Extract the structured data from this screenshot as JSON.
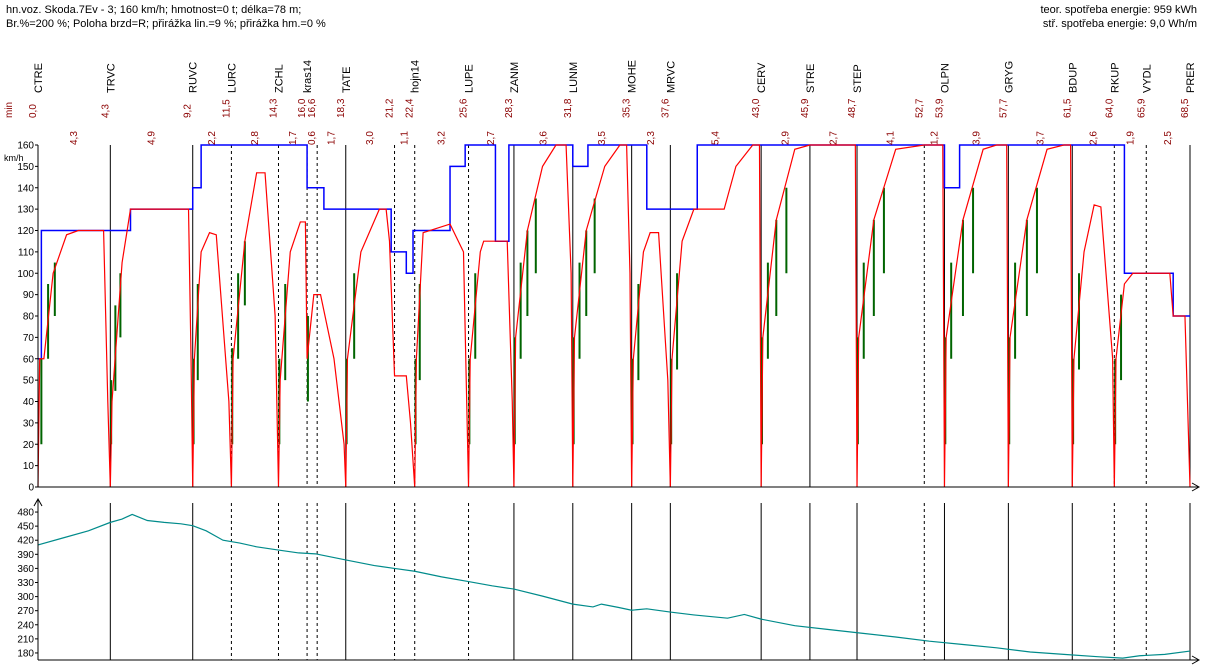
{
  "header": {
    "line1": "hn.voz. Skoda.7Ev - 3; 160 km/h; hmotnost=0 t; délka=78 m;",
    "line2": "Br.%=200 %; Poloha brzd=R; přirážka lin.=9 %; přirážka hm.=0 %",
    "energy_theor": "teor. spotřeba energie: 959 kWh",
    "energy_spec": "stř. spotřeba energie: 9,0 Wh/m"
  },
  "colors": {
    "speed_limit": "#0000ff",
    "speed_profile": "#ff0000",
    "acceleration": "#006400",
    "elevation": "#008b8b",
    "time_labels": "#8b0000",
    "axis": "#000000"
  },
  "chart_data": [
    {
      "type": "line",
      "title": "",
      "ylabel": "km/h",
      "time_unit_label": "min",
      "ylim": [
        0,
        160
      ],
      "yticks": [
        0,
        10,
        20,
        30,
        40,
        50,
        60,
        70,
        80,
        90,
        100,
        110,
        120,
        130,
        140,
        150,
        160
      ],
      "stations": [
        {
          "name": "CTRE",
          "time": "0,0",
          "style": "solid"
        },
        {
          "name": "TRVC",
          "time": "4,3",
          "style": "solid"
        },
        {
          "name": "RUVC",
          "time": "9,2",
          "style": "solid"
        },
        {
          "name": "LURC",
          "time": "11,5",
          "style": "dashed"
        },
        {
          "name": "ZCHL",
          "time": "14,3",
          "style": "dashed"
        },
        {
          "name": "kras14",
          "time": "16,0",
          "style": "dashed"
        },
        {
          "name": "",
          "time": "16,6",
          "style": "dashed"
        },
        {
          "name": "TATE",
          "time": "18,3",
          "style": "solid"
        },
        {
          "name": "",
          "time": "21,2",
          "style": "dashed"
        },
        {
          "name": "hojn14",
          "time": "22,4",
          "style": "dashed"
        },
        {
          "name": "LUPE",
          "time": "25,6",
          "style": "dashed"
        },
        {
          "name": "ZANM",
          "time": "28,3",
          "style": "solid"
        },
        {
          "name": "LUNM",
          "time": "31,8",
          "style": "solid"
        },
        {
          "name": "MOHE",
          "time": "35,3",
          "style": "solid"
        },
        {
          "name": "MRVC",
          "time": "37,6",
          "style": "solid"
        },
        {
          "name": "CERV",
          "time": "43,0",
          "style": "solid"
        },
        {
          "name": "STRE",
          "time": "45,9",
          "style": "solid"
        },
        {
          "name": "STEP",
          "time": "48,7",
          "style": "solid"
        },
        {
          "name": "",
          "time": "52,7",
          "style": "dashed"
        },
        {
          "name": "OLPN",
          "time": "53,9",
          "style": "solid"
        },
        {
          "name": "GRYG",
          "time": "57,7",
          "style": "solid"
        },
        {
          "name": "BDUP",
          "time": "61,5",
          "style": "solid"
        },
        {
          "name": "RKUP",
          "time": "64,0",
          "style": "dashed"
        },
        {
          "name": "VYDL",
          "time": "65,9",
          "style": "dashed"
        },
        {
          "name": "PRER",
          "time": "68,5",
          "style": "solid"
        }
      ],
      "segment_times": [
        "4,3",
        "4,9",
        "2,2",
        "2,8",
        "1,7",
        "0,6",
        "1,7",
        "3,0",
        "1,1",
        "3,2",
        "2,7",
        "3,6",
        "3,5",
        "2,3",
        "5,4",
        "2,9",
        "2,7",
        "4,1",
        "1,2",
        "3,9",
        "3,7",
        "2,6",
        "1,9",
        "2,5"
      ],
      "speed_limit": [
        [
          0,
          60
        ],
        [
          0.2,
          60
        ],
        [
          0.2,
          120
        ],
        [
          4.3,
          120
        ],
        [
          4.3,
          120
        ],
        [
          5.5,
          120
        ],
        [
          5.5,
          130
        ],
        [
          9.2,
          130
        ],
        [
          9.2,
          140
        ],
        [
          9.7,
          140
        ],
        [
          9.7,
          160
        ],
        [
          16.0,
          160
        ],
        [
          16.0,
          140
        ],
        [
          17.0,
          140
        ],
        [
          17.0,
          130
        ],
        [
          21.0,
          130
        ],
        [
          21.0,
          110
        ],
        [
          21.9,
          110
        ],
        [
          21.9,
          100
        ],
        [
          22.3,
          100
        ],
        [
          22.3,
          120
        ],
        [
          24.5,
          120
        ],
        [
          24.5,
          150
        ],
        [
          25.4,
          150
        ],
        [
          25.4,
          160
        ],
        [
          27.2,
          160
        ],
        [
          27.2,
          115
        ],
        [
          28.0,
          115
        ],
        [
          28.0,
          160
        ],
        [
          31.8,
          160
        ],
        [
          31.8,
          150
        ],
        [
          32.7,
          150
        ],
        [
          32.7,
          160
        ],
        [
          36.2,
          160
        ],
        [
          36.2,
          130
        ],
        [
          39.2,
          130
        ],
        [
          39.2,
          160
        ],
        [
          53.9,
          160
        ],
        [
          53.9,
          140
        ],
        [
          54.8,
          140
        ],
        [
          54.8,
          160
        ],
        [
          64.6,
          160
        ],
        [
          64.6,
          100
        ],
        [
          67.5,
          100
        ],
        [
          67.5,
          80
        ],
        [
          68.5,
          80
        ]
      ],
      "speed_profile": [
        [
          0,
          0
        ],
        [
          0.1,
          60
        ],
        [
          0.35,
          60
        ],
        [
          0.9,
          100
        ],
        [
          1.7,
          118
        ],
        [
          2.4,
          120
        ],
        [
          3.9,
          120
        ],
        [
          4.15,
          40
        ],
        [
          4.3,
          0
        ],
        [
          4.4,
          40
        ],
        [
          5.0,
          105
        ],
        [
          5.5,
          130
        ],
        [
          8.95,
          130
        ],
        [
          9.1,
          60
        ],
        [
          9.2,
          0
        ],
        [
          9.3,
          60
        ],
        [
          9.7,
          110
        ],
        [
          10.2,
          119
        ],
        [
          10.6,
          118
        ],
        [
          11.35,
          40
        ],
        [
          11.5,
          0
        ],
        [
          11.6,
          60
        ],
        [
          12.3,
          115
        ],
        [
          13.0,
          147
        ],
        [
          13.5,
          147
        ],
        [
          14.1,
          80
        ],
        [
          14.3,
          0
        ],
        [
          14.4,
          50
        ],
        [
          15.0,
          110
        ],
        [
          15.6,
          124
        ],
        [
          15.9,
          124
        ],
        [
          16.0,
          60
        ],
        [
          16.4,
          90
        ],
        [
          16.8,
          90
        ],
        [
          17.6,
          60
        ],
        [
          18.2,
          20
        ],
        [
          18.3,
          0
        ],
        [
          18.4,
          60
        ],
        [
          19.2,
          110
        ],
        [
          20.3,
          130
        ],
        [
          20.7,
          130
        ],
        [
          20.9,
          115
        ],
        [
          21.2,
          52
        ],
        [
          21.9,
          52
        ],
        [
          22.15,
          30
        ],
        [
          22.4,
          0
        ],
        [
          22.5,
          60
        ],
        [
          22.9,
          119
        ],
        [
          24.5,
          123
        ],
        [
          25.3,
          110
        ],
        [
          25.6,
          0
        ],
        [
          25.7,
          60
        ],
        [
          26.3,
          110
        ],
        [
          26.5,
          115
        ],
        [
          27.9,
          115
        ],
        [
          28.2,
          40
        ],
        [
          28.3,
          0
        ],
        [
          28.4,
          70
        ],
        [
          29.1,
          120
        ],
        [
          30.0,
          150
        ],
        [
          30.8,
          160
        ],
        [
          31.4,
          160
        ],
        [
          31.7,
          100
        ],
        [
          31.8,
          0
        ],
        [
          31.9,
          70
        ],
        [
          32.6,
          120
        ],
        [
          33.7,
          150
        ],
        [
          34.6,
          160
        ],
        [
          35.0,
          160
        ],
        [
          35.2,
          100
        ],
        [
          35.3,
          0
        ],
        [
          35.4,
          60
        ],
        [
          36.0,
          110
        ],
        [
          36.4,
          119
        ],
        [
          36.9,
          119
        ],
        [
          37.45,
          50
        ],
        [
          37.6,
          0
        ],
        [
          37.7,
          60
        ],
        [
          38.3,
          115
        ],
        [
          39.0,
          130
        ],
        [
          40.8,
          130
        ],
        [
          41.5,
          150
        ],
        [
          42.5,
          160
        ],
        [
          42.9,
          160
        ],
        [
          43.0,
          0
        ],
        [
          43.1,
          70
        ],
        [
          43.9,
          125
        ],
        [
          45.0,
          158
        ],
        [
          45.9,
          160
        ],
        [
          48.6,
          160
        ],
        [
          48.7,
          0
        ],
        [
          48.8,
          70
        ],
        [
          49.7,
          125
        ],
        [
          51.0,
          158
        ],
        [
          52.7,
          160
        ],
        [
          53.8,
          160
        ],
        [
          53.9,
          0
        ],
        [
          54.0,
          70
        ],
        [
          55.0,
          125
        ],
        [
          56.2,
          158
        ],
        [
          57.0,
          160
        ],
        [
          57.6,
          160
        ],
        [
          57.7,
          0
        ],
        [
          57.8,
          70
        ],
        [
          58.8,
          125
        ],
        [
          60.0,
          158
        ],
        [
          61.0,
          160
        ],
        [
          61.4,
          160
        ],
        [
          61.5,
          0
        ],
        [
          61.6,
          60
        ],
        [
          62.2,
          110
        ],
        [
          62.8,
          132
        ],
        [
          63.2,
          131
        ],
        [
          63.9,
          60
        ],
        [
          64.0,
          0
        ],
        [
          64.1,
          60
        ],
        [
          64.6,
          95
        ],
        [
          65.1,
          100
        ],
        [
          67.3,
          100
        ],
        [
          67.5,
          80
        ],
        [
          68.2,
          80
        ],
        [
          68.5,
          0
        ]
      ],
      "acceleration_markers": [
        [
          0.2,
          20,
          60
        ],
        [
          0.6,
          60,
          95
        ],
        [
          1.0,
          80,
          105
        ],
        [
          4.35,
          20,
          50
        ],
        [
          4.6,
          45,
          85
        ],
        [
          4.9,
          70,
          100
        ],
        [
          9.25,
          20,
          60
        ],
        [
          9.5,
          50,
          95
        ],
        [
          11.55,
          20,
          65
        ],
        [
          11.9,
          60,
          100
        ],
        [
          12.3,
          85,
          115
        ],
        [
          14.35,
          20,
          60
        ],
        [
          14.7,
          50,
          95
        ],
        [
          16.05,
          40,
          80
        ],
        [
          18.35,
          20,
          60
        ],
        [
          18.8,
          60,
          100
        ],
        [
          22.45,
          20,
          60
        ],
        [
          22.7,
          50,
          95
        ],
        [
          25.65,
          20,
          60
        ],
        [
          26.0,
          60,
          100
        ],
        [
          28.35,
          20,
          70
        ],
        [
          28.7,
          60,
          105
        ],
        [
          29.1,
          80,
          120
        ],
        [
          29.6,
          100,
          135
        ],
        [
          31.85,
          20,
          70
        ],
        [
          32.2,
          60,
          105
        ],
        [
          32.6,
          80,
          120
        ],
        [
          33.1,
          100,
          135
        ],
        [
          35.35,
          20,
          60
        ],
        [
          35.7,
          50,
          95
        ],
        [
          37.65,
          20,
          60
        ],
        [
          38.0,
          55,
          100
        ],
        [
          43.05,
          20,
          70
        ],
        [
          43.4,
          60,
          105
        ],
        [
          43.9,
          80,
          125
        ],
        [
          44.5,
          100,
          140
        ],
        [
          48.75,
          20,
          70
        ],
        [
          49.1,
          60,
          105
        ],
        [
          49.7,
          80,
          125
        ],
        [
          50.3,
          100,
          140
        ],
        [
          53.95,
          20,
          70
        ],
        [
          54.3,
          60,
          105
        ],
        [
          55.0,
          80,
          125
        ],
        [
          55.6,
          100,
          140
        ],
        [
          57.75,
          20,
          70
        ],
        [
          58.1,
          60,
          105
        ],
        [
          58.8,
          80,
          125
        ],
        [
          59.4,
          100,
          140
        ],
        [
          61.55,
          20,
          60
        ],
        [
          61.9,
          55,
          100
        ],
        [
          64.05,
          20,
          60
        ],
        [
          64.4,
          50,
          90
        ]
      ]
    },
    {
      "type": "area",
      "title": "",
      "ylabel": "",
      "ylim": [
        165,
        495
      ],
      "yticks": [
        180,
        210,
        240,
        270,
        300,
        330,
        360,
        390,
        420,
        450,
        480
      ],
      "elevation": [
        [
          0,
          410
        ],
        [
          1.5,
          425
        ],
        [
          3.0,
          440
        ],
        [
          4.3,
          458
        ],
        [
          5.0,
          465
        ],
        [
          5.6,
          475
        ],
        [
          6.5,
          462
        ],
        [
          7.5,
          458
        ],
        [
          8.5,
          455
        ],
        [
          9.2,
          451
        ],
        [
          10.0,
          440
        ],
        [
          11.0,
          420
        ],
        [
          12.0,
          414
        ],
        [
          13.0,
          406
        ],
        [
          14.3,
          399
        ],
        [
          15.5,
          393
        ],
        [
          16.5,
          391
        ],
        [
          18.3,
          378
        ],
        [
          20.0,
          366
        ],
        [
          21.2,
          360
        ],
        [
          22.4,
          354
        ],
        [
          24.0,
          342
        ],
        [
          25.6,
          332
        ],
        [
          27.0,
          323
        ],
        [
          28.3,
          316
        ],
        [
          30.0,
          301
        ],
        [
          31.8,
          284
        ],
        [
          33.0,
          278
        ],
        [
          33.5,
          284
        ],
        [
          34.5,
          277
        ],
        [
          35.3,
          271
        ],
        [
          36.2,
          274
        ],
        [
          37.6,
          267
        ],
        [
          39.0,
          261
        ],
        [
          41.0,
          254
        ],
        [
          42.0,
          262
        ],
        [
          43.0,
          252
        ],
        [
          45.0,
          238
        ],
        [
          47.0,
          230
        ],
        [
          49.0,
          222
        ],
        [
          51.0,
          214
        ],
        [
          53.0,
          205
        ],
        [
          55.0,
          198
        ],
        [
          57.0,
          191
        ],
        [
          59.0,
          182
        ],
        [
          61.0,
          177
        ],
        [
          63.0,
          172
        ],
        [
          64.5,
          169
        ],
        [
          65.5,
          174
        ],
        [
          67.0,
          177
        ],
        [
          68.5,
          184
        ]
      ]
    }
  ]
}
